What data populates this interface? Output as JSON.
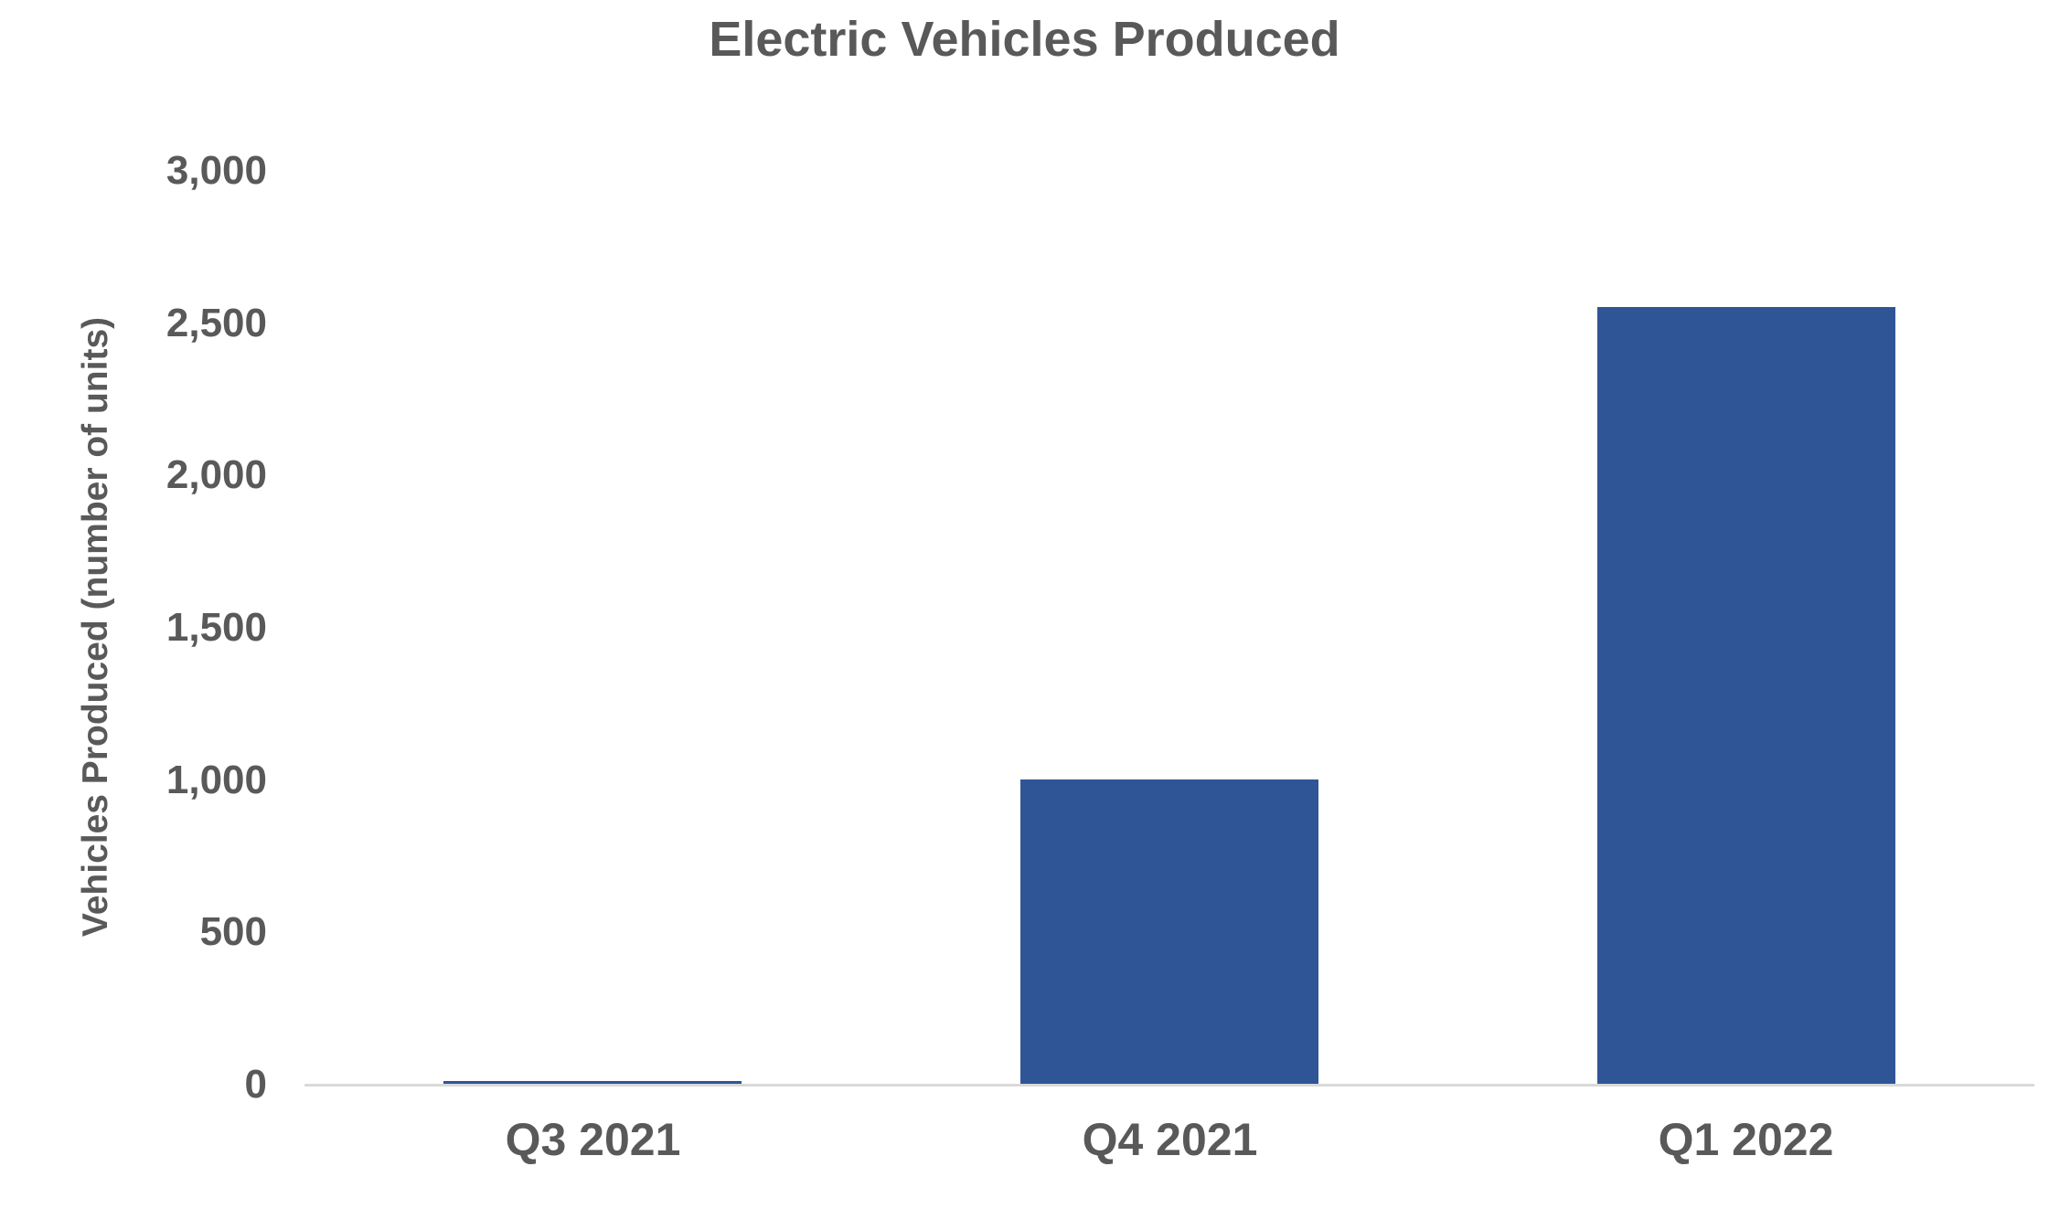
{
  "chart_data": {
    "type": "bar",
    "title": "Electric Vehicles Produced",
    "xlabel": "",
    "ylabel": "Vehicles Produced (number of units)",
    "categories": [
      "Q3 2021",
      "Q4 2021",
      "Q1 2022"
    ],
    "values": [
      12,
      1003,
      2553
    ],
    "ylim": [
      0,
      3000
    ],
    "ytick_step": 500,
    "ytick_labels": [
      "0",
      "500",
      "1,000",
      "1,500",
      "2,000",
      "2,500",
      "3,000"
    ],
    "grid": false,
    "legend": "none",
    "colors": {
      "bar": "#2F5596",
      "text": "#595959",
      "axis_line": "#D9D9D9",
      "background": "#FFFFFF"
    }
  }
}
